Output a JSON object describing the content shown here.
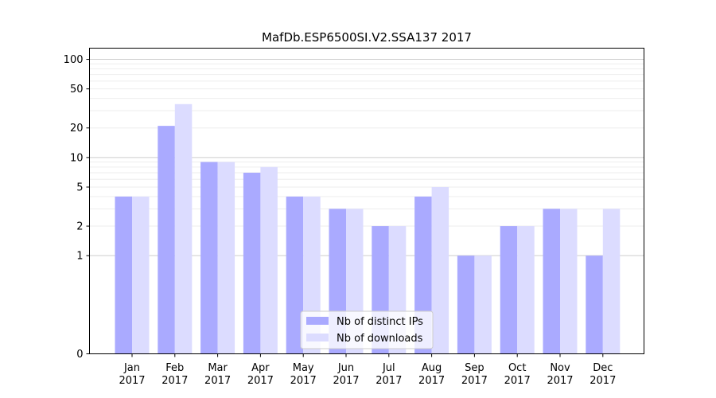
{
  "chart_data": {
    "type": "bar",
    "title": "MafDb.ESP6500SI.V2.SSA137 2017",
    "xlabel": "",
    "ylabel": "",
    "yscale": "symlog",
    "ylim": [
      0,
      130
    ],
    "categories": [
      {
        "month": "Jan",
        "year": "2017"
      },
      {
        "month": "Feb",
        "year": "2017"
      },
      {
        "month": "Mar",
        "year": "2017"
      },
      {
        "month": "Apr",
        "year": "2017"
      },
      {
        "month": "May",
        "year": "2017"
      },
      {
        "month": "Jun",
        "year": "2017"
      },
      {
        "month": "Jul",
        "year": "2017"
      },
      {
        "month": "Aug",
        "year": "2017"
      },
      {
        "month": "Sep",
        "year": "2017"
      },
      {
        "month": "Oct",
        "year": "2017"
      },
      {
        "month": "Nov",
        "year": "2017"
      },
      {
        "month": "Dec",
        "year": "2017"
      }
    ],
    "series": [
      {
        "name": "Nb of distinct IPs",
        "color": "#aaaaff",
        "values": [
          4,
          21,
          9,
          7,
          4,
          3,
          2,
          4,
          1,
          2,
          3,
          1
        ]
      },
      {
        "name": "Nb of downloads",
        "color": "#dcdcff",
        "values": [
          4,
          35,
          9,
          8,
          4,
          3,
          2,
          5,
          1,
          2,
          3,
          3
        ]
      }
    ],
    "yticks": [
      "0",
      "1",
      "2",
      "5",
      "10",
      "20",
      "50",
      "100"
    ],
    "legend_position": "bottom-center"
  }
}
